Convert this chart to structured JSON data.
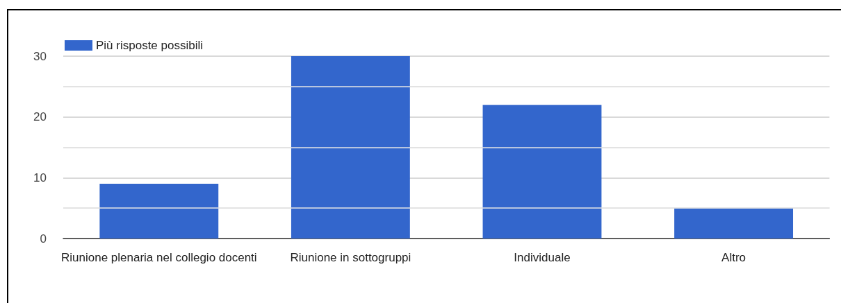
{
  "chart_data": {
    "type": "bar",
    "categories": [
      "Riunione plenaria nel collegio docenti",
      "Riunione in sottogruppi",
      "Individuale",
      "Altro"
    ],
    "series": [
      {
        "name": "Più risposte possibili",
        "color": "#3366cc",
        "values": [
          9,
          30,
          22,
          5
        ]
      }
    ],
    "ylim": [
      0,
      30
    ],
    "yticks": [
      0,
      {
        "value": 5,
        "label": null
      },
      10,
      {
        "value": 15,
        "label": null
      },
      20,
      {
        "value": 25,
        "label": null
      },
      30
    ],
    "grid": "y",
    "legend": "top left"
  }
}
